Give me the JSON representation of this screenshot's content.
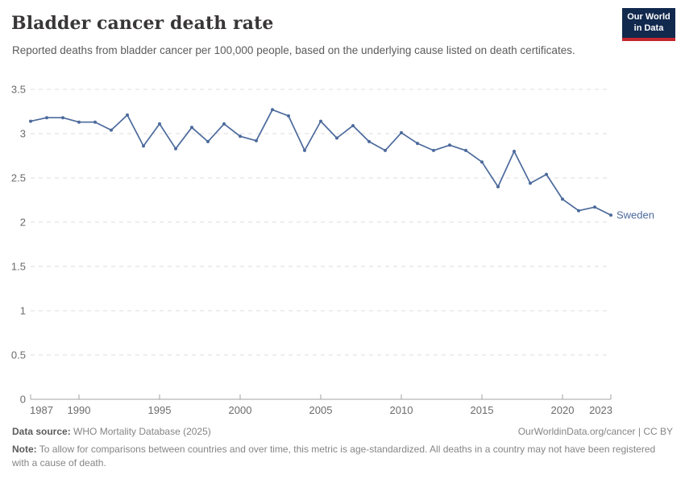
{
  "header": {
    "title": "Bladder cancer death rate",
    "subtitle": "Reported deaths from bladder cancer per 100,000 people, based on the underlying cause listed on death certificates."
  },
  "logo": {
    "line1": "Our World",
    "line2": "in Data",
    "bg_color": "#12294E",
    "accent_color": "#C5262E"
  },
  "chart_data": {
    "type": "line",
    "title": "Bladder cancer death rate",
    "xlabel": "",
    "ylabel": "",
    "x": [
      1987,
      1988,
      1989,
      1990,
      1991,
      1992,
      1993,
      1994,
      1995,
      1996,
      1997,
      1998,
      1999,
      2000,
      2001,
      2002,
      2003,
      2004,
      2005,
      2006,
      2007,
      2008,
      2009,
      2010,
      2011,
      2012,
      2013,
      2014,
      2015,
      2016,
      2017,
      2018,
      2019,
      2020,
      2021,
      2022,
      2023
    ],
    "series": [
      {
        "name": "Sweden",
        "color": "#4C6A9C",
        "values": [
          3.14,
          3.18,
          3.18,
          3.13,
          3.13,
          3.04,
          3.21,
          2.86,
          3.11,
          2.83,
          3.07,
          2.91,
          3.11,
          2.97,
          2.92,
          3.27,
          3.2,
          2.81,
          3.14,
          2.95,
          3.09,
          2.91,
          2.81,
          3.01,
          2.89,
          2.81,
          2.87,
          2.81,
          2.68,
          2.4,
          2.8,
          2.44,
          2.54,
          2.26,
          2.13,
          2.17,
          2.08
        ]
      }
    ],
    "ylim": [
      0,
      3.5
    ],
    "yticks": [
      0,
      0.5,
      1,
      1.5,
      2,
      2.5,
      3,
      3.5
    ],
    "xticks": [
      1987,
      1990,
      1995,
      2000,
      2005,
      2010,
      2015,
      2020,
      2023
    ],
    "grid": "horizontal-dashed",
    "legend_position": "right-of-last-point"
  },
  "footer": {
    "source_label": "Data source:",
    "source_value": " WHO Mortality Database (2025)",
    "link_text": "OurWorldinData.org/cancer | CC BY",
    "note_label": "Note:",
    "note_value": " To allow for comparisons between countries and over time, this metric is age-standardized. All deaths in a country may not have been registered with a cause of death."
  },
  "colors": {
    "line": "#4C6A9C",
    "gridline": "#dcdcdc",
    "axis": "#a3a3a3",
    "tick_label": "#6b6b6b",
    "title_text": "#383636",
    "subtitle_text": "#5b5b5b"
  }
}
